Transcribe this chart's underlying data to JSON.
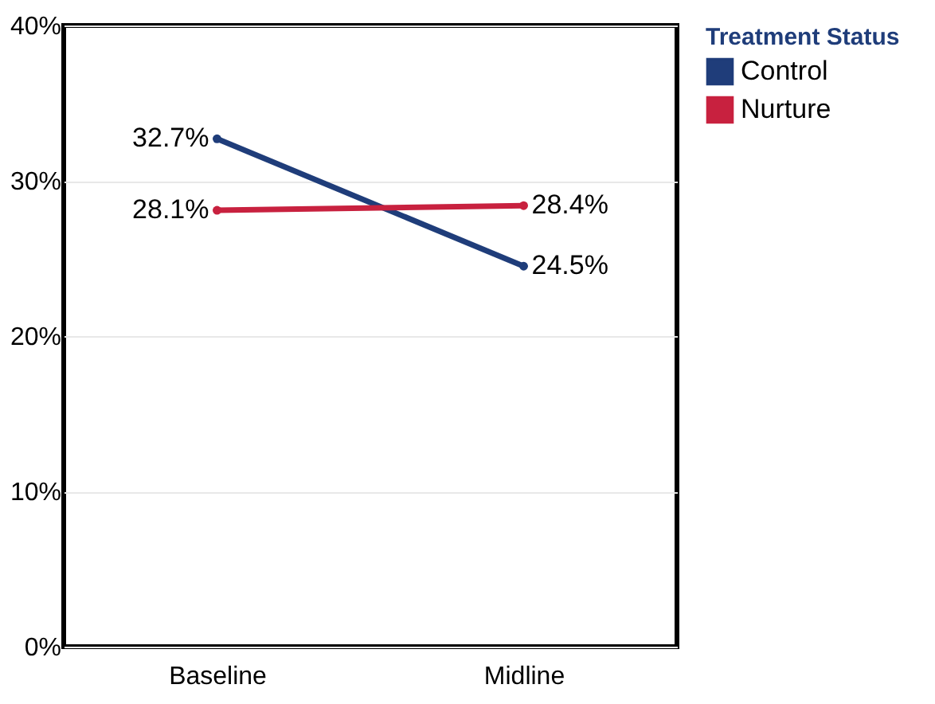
{
  "chart_data": {
    "type": "line",
    "categories": [
      "Baseline",
      "Midline"
    ],
    "legend_title": "Treatment Status",
    "series": [
      {
        "name": "Control",
        "color": "#1f3d7a",
        "values": [
          32.7,
          24.5
        ],
        "value_labels": [
          "32.7%",
          "24.5%"
        ]
      },
      {
        "name": "Nurture",
        "color": "#c8213f",
        "values": [
          28.1,
          28.4
        ],
        "value_labels": [
          "28.1%",
          "28.4%"
        ]
      }
    ],
    "ylim": [
      0,
      40
    ],
    "yticks": [
      {
        "value": 0,
        "label": "0%"
      },
      {
        "value": 10,
        "label": "10%"
      },
      {
        "value": 20,
        "label": "20%"
      },
      {
        "value": 30,
        "label": "30%"
      },
      {
        "value": 40,
        "label": "40%"
      }
    ],
    "grid": "y",
    "legend": "top right",
    "marker": "circle",
    "line_style": "solid"
  }
}
